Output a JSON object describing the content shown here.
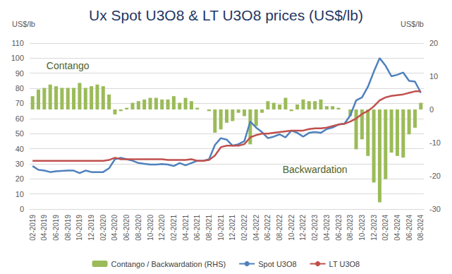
{
  "chart_data": {
    "type": "line",
    "title": "Ux Spot U3O8 & LT U3O8 prices (US$/lb)",
    "y_label": "US$/lb",
    "y2_label": "US$/lb",
    "categories": [
      "02-2019",
      null,
      "04-2019",
      null,
      "06-2019",
      null,
      "08-2019",
      null,
      "10-2019",
      null,
      "12-2019",
      null,
      "02-2020",
      null,
      "04-2020",
      null,
      "06-2020",
      null,
      "08-2020",
      null,
      "10-2020",
      null,
      "12-2020",
      null,
      "02-2021",
      null,
      "04-2021",
      null,
      "06-2021",
      null,
      "08-2021",
      null,
      "10-2021",
      null,
      "12-2021",
      null,
      "02-2022",
      null,
      "04-2022",
      null,
      "06-2022",
      null,
      "08-2022",
      null,
      "10-2022",
      null,
      "12-2022",
      null,
      "02-2023",
      null,
      "04-2023",
      null,
      "06-2023",
      null,
      "08-2023",
      null,
      "10-2023",
      null,
      "12-2023",
      null,
      "02-2024",
      null,
      "04-2024",
      null,
      "06-2024",
      null,
      "08-2024"
    ],
    "series": [
      {
        "name": "Contango / Backwardation (RHS)",
        "type": "bar",
        "axis": "y2",
        "color": "#9bbb59",
        "values": [
          4,
          6,
          6.5,
          7.5,
          7,
          6.5,
          6.5,
          6.5,
          8,
          6.5,
          7,
          7.5,
          7,
          4.5,
          -1.5,
          -0.5,
          0.5,
          2,
          2.5,
          3,
          3.5,
          3.5,
          3,
          3,
          4,
          2,
          3.5,
          2.5,
          0.5,
          0,
          -0.5,
          -7,
          -6,
          -4,
          -3.5,
          -1,
          -2,
          -10.5,
          -5,
          -1,
          2.5,
          2,
          1.5,
          3.5,
          -0.5,
          1.5,
          3,
          2.5,
          2.5,
          3,
          1,
          1,
          0.5,
          0,
          -2,
          -12,
          -9,
          -14,
          -22,
          -28,
          -21,
          -13,
          -14,
          -14.5,
          -7.5,
          -5.5,
          2
        ]
      },
      {
        "name": "Spot U3O8",
        "type": "line",
        "color": "#4f81bd",
        "values": [
          28.5,
          26,
          25.5,
          24.5,
          25,
          25.3,
          25.5,
          25.5,
          23.8,
          25.5,
          24.5,
          24.5,
          24.5,
          27,
          33,
          34,
          33,
          32,
          30.5,
          30,
          29.5,
          29.5,
          29.8,
          29.5,
          28.5,
          30.5,
          29,
          30.5,
          32,
          32,
          33,
          42.5,
          47,
          46,
          42,
          43,
          45,
          58,
          54,
          51,
          47,
          48,
          49.5,
          47.5,
          52,
          50.5,
          48,
          50.5,
          51,
          50.5,
          53,
          54,
          56,
          56.5,
          62,
          72,
          74,
          81,
          91,
          100,
          95,
          88,
          89,
          90.5,
          85,
          84.5,
          77
        ]
      },
      {
        "name": "LT U3O8",
        "type": "line",
        "color": "#c0504d",
        "values": [
          32,
          32,
          32,
          32,
          32,
          32,
          32,
          32,
          32,
          32,
          32,
          32,
          32,
          32.5,
          34,
          33,
          33,
          33,
          33,
          33,
          33,
          33,
          33,
          32.5,
          32.5,
          32.5,
          32.5,
          33,
          32,
          32,
          32.5,
          35.5,
          41,
          42,
          42,
          42,
          43,
          47.5,
          49,
          50,
          50,
          50.5,
          51,
          51.5,
          52,
          52,
          52,
          53,
          53.5,
          53.5,
          54,
          55,
          56,
          56.5,
          58,
          60,
          63,
          65,
          68,
          72,
          74,
          75,
          75.5,
          76,
          77,
          78,
          78
        ]
      }
    ],
    "ylim": [
      0,
      110
    ],
    "yticks": [
      0,
      10,
      20,
      30,
      40,
      50,
      60,
      70,
      80,
      90,
      100,
      110
    ],
    "y2lim": [
      -30,
      20
    ],
    "y2ticks": [
      -30,
      -20,
      -10,
      0,
      10,
      20
    ],
    "annotations": [
      {
        "text": "Contango",
        "x": "08-2019",
        "y": 95
      },
      {
        "text": "Backwardation",
        "x": "02-2023",
        "y": 26
      }
    ],
    "grid": true,
    "legend": "bottom"
  }
}
